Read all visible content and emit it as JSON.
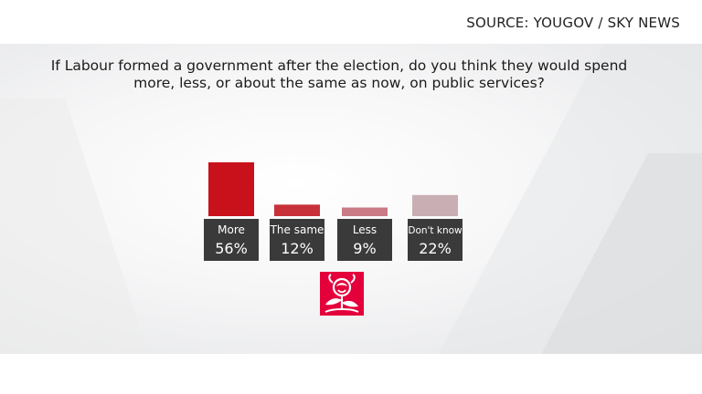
{
  "source": "SOURCE: YOUGOV / SKY NEWS",
  "question_line1": "If Labour formed a government after the election, do you think they would spend",
  "question_line2": "more, less,  or about the same as now, on public services?",
  "logo": {
    "icon": "labour-rose-icon",
    "color": "#e4003b"
  },
  "chart_data": {
    "type": "bar",
    "title": "If Labour formed a government after the election, do you think they would spend more, less,  or about the same as now, on public services?",
    "categories": [
      "More",
      "The same",
      "Less",
      "Don't know"
    ],
    "values": [
      56,
      12,
      9,
      22
    ],
    "value_labels": [
      "56%",
      "12%",
      "9%",
      "22%"
    ],
    "unit": "%",
    "ylim": [
      0,
      56
    ],
    "colors": [
      "#c8111b",
      "#c8313a",
      "#c97c85",
      "#c9aeb3"
    ],
    "label_box_color": "#3a3a3a",
    "grid": false,
    "legend": false
  }
}
